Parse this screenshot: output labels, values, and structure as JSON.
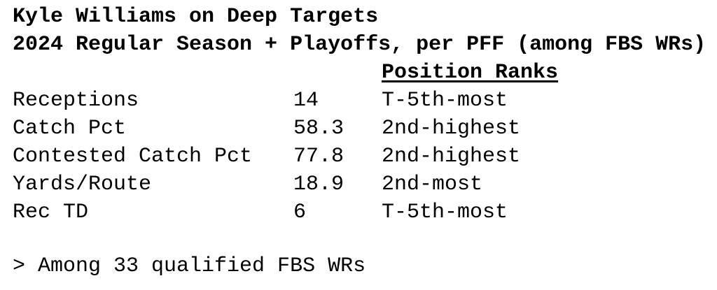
{
  "title": "Kyle Williams on Deep Targets",
  "subtitle": "2024 Regular Season + Playoffs, per PFF (among FBS WRs)",
  "rank_header": "Position Ranks",
  "rows": [
    {
      "label": "Receptions",
      "value": "14",
      "rank": "T-5th-most"
    },
    {
      "label": "Catch Pct",
      "value": "58.3",
      "rank": "2nd-highest"
    },
    {
      "label": "Contested Catch Pct",
      "value": "77.8",
      "rank": "2nd-highest"
    },
    {
      "label": "Yards/Route",
      "value": "18.9",
      "rank": "2nd-most"
    },
    {
      "label": "Rec TD",
      "value": "6",
      "rank": "T-5th-most"
    }
  ],
  "footnote": "> Among 33 qualified FBS WRs"
}
